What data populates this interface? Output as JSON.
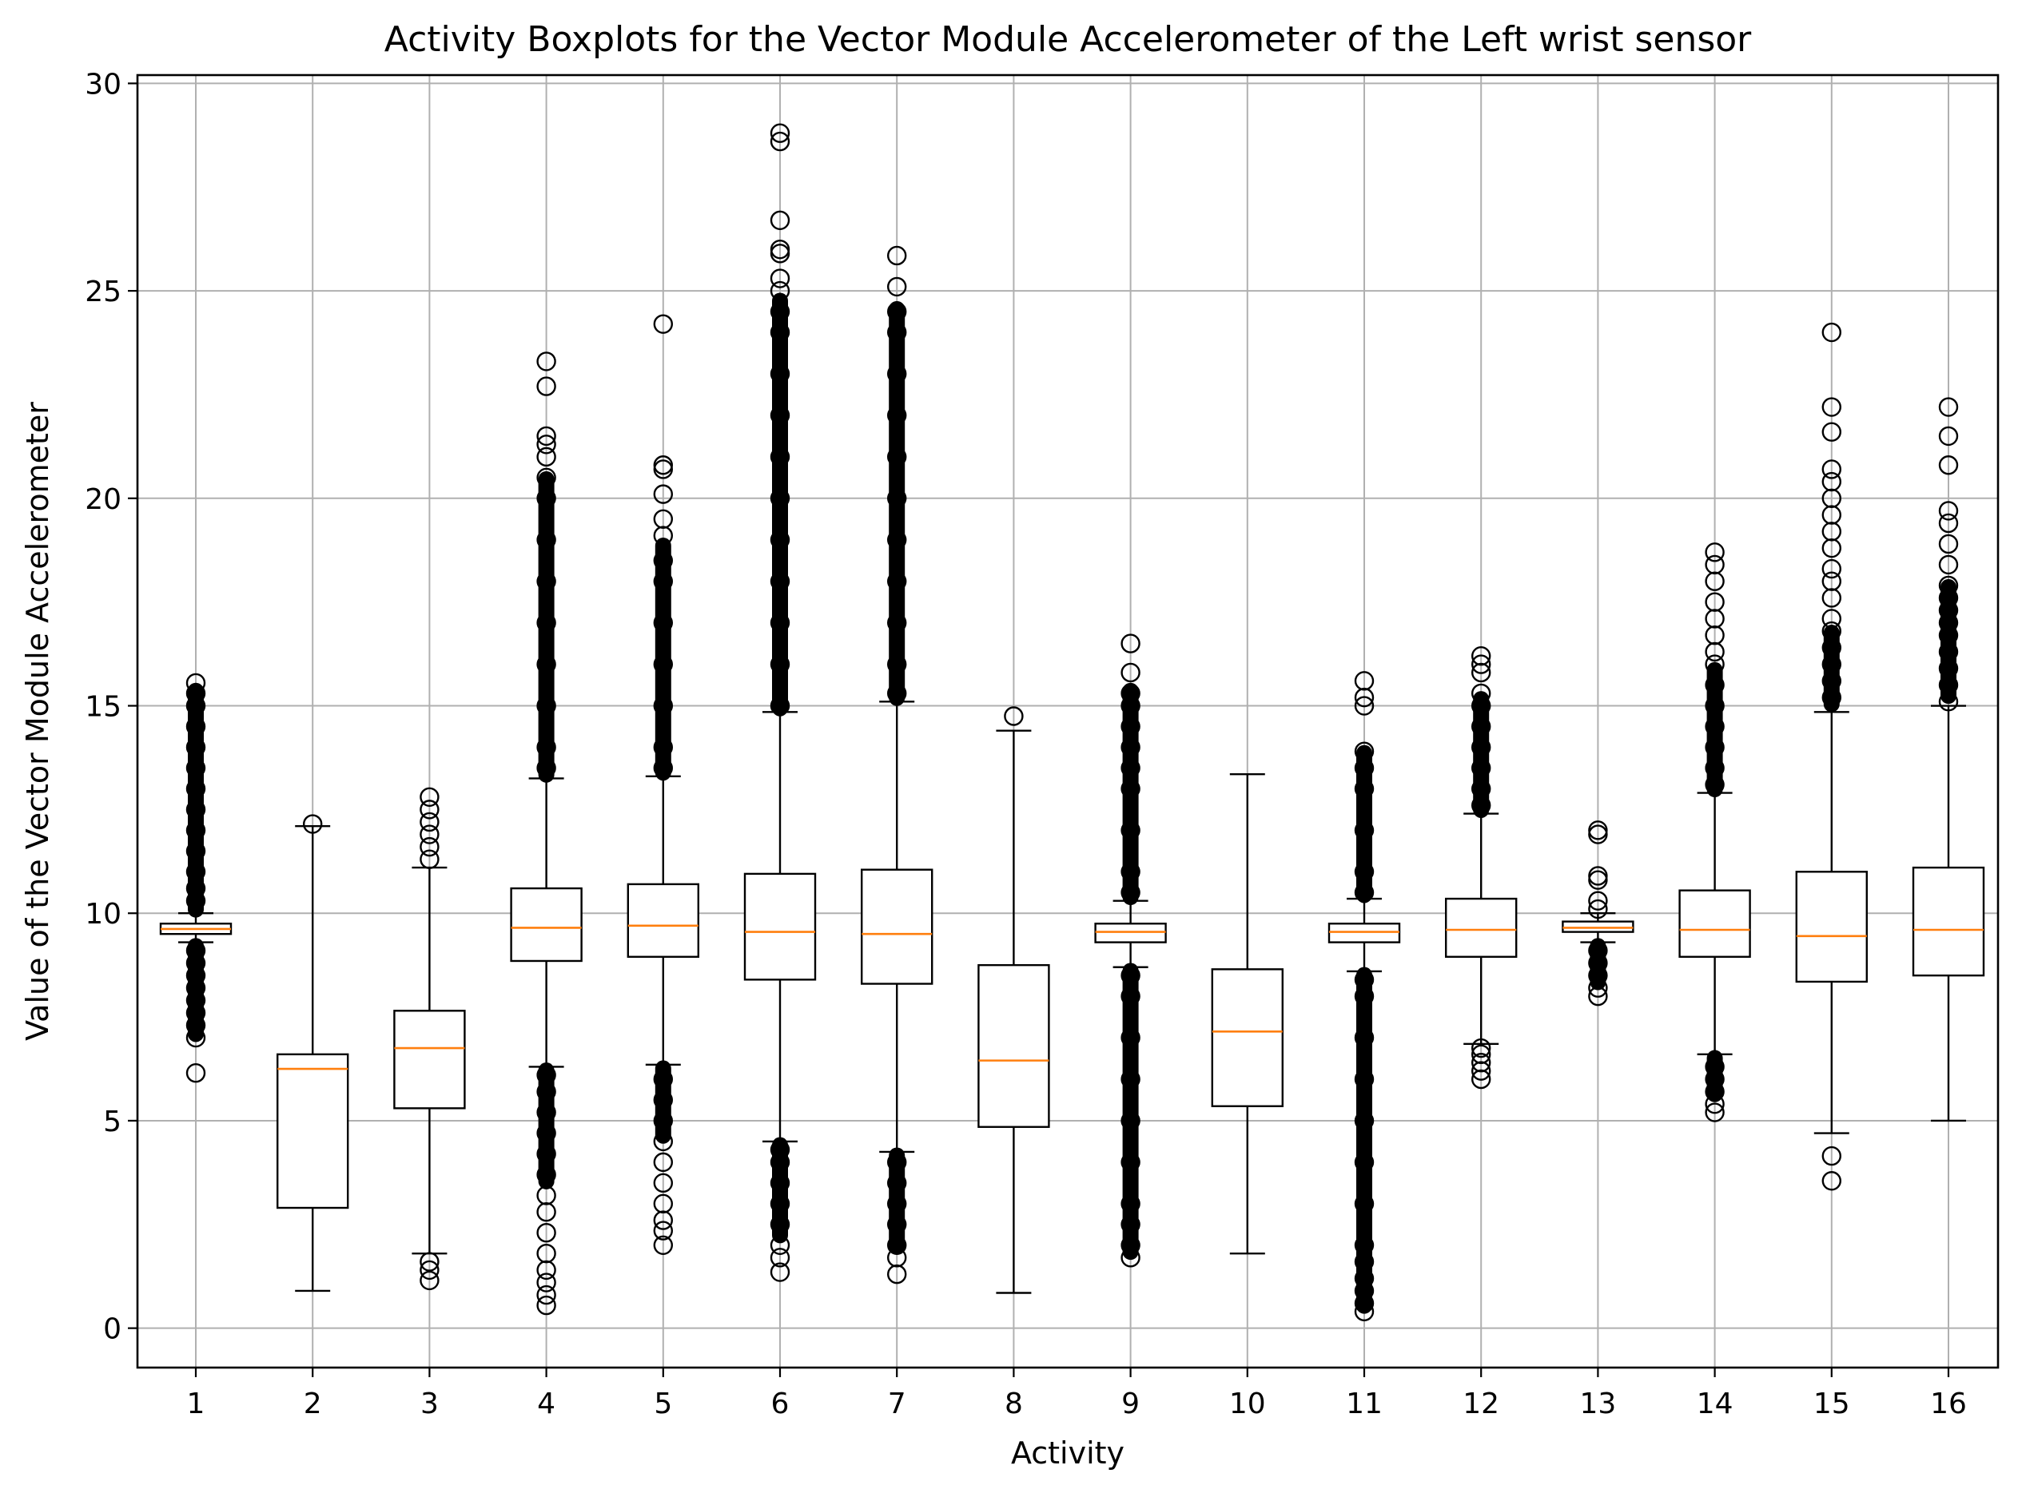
{
  "chart_data": {
    "type": "boxplot",
    "title": "Activity Boxplots for the Vector Module Accelerometer of the Left wrist sensor",
    "xlabel": "Activity",
    "ylabel": "Value of the Vector Module Accelerometer",
    "ylim": [
      -0.95,
      30.2
    ],
    "yticks": [
      0,
      5,
      10,
      15,
      20,
      25,
      30
    ],
    "grid": true,
    "colors": {
      "box": "#000000",
      "median": "#ff7f0e",
      "grid": "#b0b0b0"
    },
    "categories": [
      "1",
      "2",
      "3",
      "4",
      "5",
      "6",
      "7",
      "8",
      "9",
      "10",
      "11",
      "12",
      "13",
      "14",
      "15",
      "16"
    ],
    "boxes": [
      {
        "label": "1",
        "whislo": 9.3,
        "q1": 9.5,
        "med": 9.62,
        "q3": 9.75,
        "whishi": 10.0,
        "fliers": [
          6.15,
          7.0,
          7.3,
          7.6,
          7.9,
          8.2,
          8.5,
          8.8,
          9.1,
          10.3,
          10.6,
          11.0,
          11.5,
          12.0,
          12.5,
          13.0,
          13.5,
          14.0,
          14.5,
          15.0,
          15.3,
          15.55
        ],
        "fill_low": [
          7.05,
          9.25
        ],
        "fill_high": [
          10.05,
          15.4
        ]
      },
      {
        "label": "2",
        "whislo": 0.9,
        "q1": 2.9,
        "med": 6.25,
        "q3": 6.6,
        "whishi": 12.1,
        "fliers": [
          12.15
        ],
        "fill_low": null,
        "fill_high": null
      },
      {
        "label": "3",
        "whislo": 1.8,
        "q1": 5.3,
        "med": 6.75,
        "q3": 7.65,
        "whishi": 11.1,
        "fliers": [
          1.15,
          1.4,
          1.6,
          11.3,
          11.6,
          11.9,
          12.2,
          12.5,
          12.8
        ],
        "fill_low": null,
        "fill_high": null
      },
      {
        "label": "4",
        "whislo": 6.3,
        "q1": 8.85,
        "med": 9.65,
        "q3": 10.6,
        "whishi": 13.25,
        "fliers": [
          0.55,
          0.8,
          1.1,
          1.4,
          1.8,
          2.3,
          2.8,
          3.2,
          3.7,
          4.2,
          4.7,
          5.2,
          5.7,
          6.1,
          13.5,
          14.0,
          15.0,
          16.0,
          17.0,
          18.0,
          19.0,
          20.0,
          20.5,
          21.0,
          21.3,
          21.5,
          22.7,
          23.3
        ],
        "fill_low": [
          3.5,
          6.25
        ],
        "fill_high": [
          13.3,
          20.5
        ]
      },
      {
        "label": "5",
        "whislo": 6.35,
        "q1": 8.95,
        "med": 9.7,
        "q3": 10.7,
        "whishi": 13.3,
        "fliers": [
          2.0,
          2.35,
          2.6,
          3.0,
          3.5,
          4.0,
          4.5,
          5.0,
          5.5,
          6.0,
          13.5,
          14.0,
          15.0,
          16.0,
          17.0,
          18.0,
          18.5,
          19.1,
          19.5,
          20.1,
          20.7,
          20.8,
          24.2
        ],
        "fill_low": [
          4.6,
          6.3
        ],
        "fill_high": [
          13.35,
          18.9
        ]
      },
      {
        "label": "6",
        "whislo": 4.5,
        "q1": 8.4,
        "med": 9.55,
        "q3": 10.95,
        "whishi": 14.85,
        "fliers": [
          1.35,
          1.7,
          2.0,
          2.5,
          3.0,
          3.5,
          4.0,
          4.3,
          15.0,
          16.0,
          17.0,
          18.0,
          19.0,
          20.0,
          21.0,
          22.0,
          23.0,
          24.0,
          24.5,
          25.0,
          25.3,
          25.9,
          26.0,
          26.7,
          28.6,
          28.8
        ],
        "fill_low": [
          2.2,
          4.45
        ],
        "fill_high": [
          14.9,
          24.8
        ]
      },
      {
        "label": "7",
        "whislo": 4.25,
        "q1": 8.3,
        "med": 9.5,
        "q3": 11.05,
        "whishi": 15.1,
        "fliers": [
          1.3,
          1.7,
          2.0,
          2.5,
          3.0,
          3.5,
          4.0,
          15.3,
          16.0,
          17.0,
          18.0,
          19.0,
          20.0,
          21.0,
          22.0,
          23.0,
          24.0,
          24.5,
          25.1,
          25.85
        ],
        "fill_low": [
          1.95,
          4.2
        ],
        "fill_high": [
          15.15,
          24.6
        ]
      },
      {
        "label": "8",
        "whislo": 0.85,
        "q1": 4.85,
        "med": 6.45,
        "q3": 8.75,
        "whishi": 14.4,
        "fliers": [
          14.75
        ],
        "fill_low": null,
        "fill_high": null
      },
      {
        "label": "9",
        "whislo": 8.7,
        "q1": 9.3,
        "med": 9.55,
        "q3": 9.75,
        "whishi": 10.3,
        "fliers": [
          1.7,
          2.0,
          2.5,
          3.0,
          4.0,
          5.0,
          6.0,
          7.0,
          8.0,
          8.5,
          10.5,
          11.0,
          12.0,
          13.0,
          13.5,
          14.0,
          14.5,
          15.0,
          15.3,
          15.8,
          16.5
        ],
        "fill_low": [
          1.8,
          8.65
        ],
        "fill_high": [
          10.35,
          15.4
        ]
      },
      {
        "label": "10",
        "whislo": 1.8,
        "q1": 5.35,
        "med": 7.15,
        "q3": 8.65,
        "whishi": 13.35,
        "fliers": [],
        "fill_low": null,
        "fill_high": null
      },
      {
        "label": "11",
        "whislo": 8.6,
        "q1": 9.3,
        "med": 9.55,
        "q3": 9.75,
        "whishi": 10.35,
        "fliers": [
          0.4,
          0.6,
          0.9,
          1.2,
          1.6,
          2.0,
          3.0,
          4.0,
          5.0,
          6.0,
          7.0,
          8.0,
          8.4,
          10.5,
          11.0,
          12.0,
          13.0,
          13.5,
          13.9,
          15.0,
          15.2,
          15.6
        ],
        "fill_low": [
          0.5,
          8.55
        ],
        "fill_high": [
          10.4,
          13.9
        ]
      },
      {
        "label": "12",
        "whislo": 6.85,
        "q1": 8.95,
        "med": 9.6,
        "q3": 10.35,
        "whishi": 12.4,
        "fliers": [
          6.0,
          6.2,
          6.4,
          6.6,
          6.75,
          12.6,
          13.0,
          13.5,
          14.0,
          14.5,
          15.0,
          15.3,
          15.8,
          16.0,
          16.2
        ],
        "fill_low": null,
        "fill_high": [
          12.45,
          15.2
        ]
      },
      {
        "label": "13",
        "whislo": 9.3,
        "q1": 9.55,
        "med": 9.65,
        "q3": 9.8,
        "whishi": 10.0,
        "fliers": [
          8.0,
          8.2,
          8.5,
          8.8,
          9.1,
          10.1,
          10.3,
          10.8,
          10.9,
          11.9,
          12.0
        ],
        "fill_low": [
          8.3,
          9.25
        ],
        "fill_high": null
      },
      {
        "label": "14",
        "whislo": 6.6,
        "q1": 8.95,
        "med": 9.6,
        "q3": 10.55,
        "whishi": 12.9,
        "fliers": [
          5.2,
          5.4,
          5.7,
          6.0,
          6.3,
          13.1,
          13.5,
          14.0,
          14.5,
          15.0,
          15.5,
          16.0,
          16.3,
          16.7,
          17.1,
          17.5,
          18.0,
          18.4,
          18.7
        ],
        "fill_low": [
          5.6,
          6.55
        ],
        "fill_high": [
          12.95,
          15.9
        ]
      },
      {
        "label": "15",
        "whislo": 4.7,
        "q1": 8.35,
        "med": 9.45,
        "q3": 11.0,
        "whishi": 14.85,
        "fliers": [
          3.55,
          4.15,
          15.2,
          15.6,
          16.0,
          16.4,
          16.8,
          17.1,
          17.6,
          18.0,
          18.3,
          18.8,
          19.2,
          19.6,
          20.0,
          20.4,
          20.7,
          21.6,
          22.2,
          24.0
        ],
        "fill_low": null,
        "fill_high": [
          15.0,
          16.8
        ]
      },
      {
        "label": "16",
        "whislo": 5.0,
        "q1": 8.5,
        "med": 9.6,
        "q3": 11.1,
        "whishi": 15.0,
        "fliers": [
          15.1,
          15.5,
          15.9,
          16.3,
          16.7,
          17.0,
          17.3,
          17.6,
          17.9,
          18.4,
          18.9,
          19.4,
          19.7,
          20.8,
          21.5,
          22.2
        ],
        "fill_low": null,
        "fill_high": [
          15.2,
          17.9
        ]
      }
    ]
  }
}
